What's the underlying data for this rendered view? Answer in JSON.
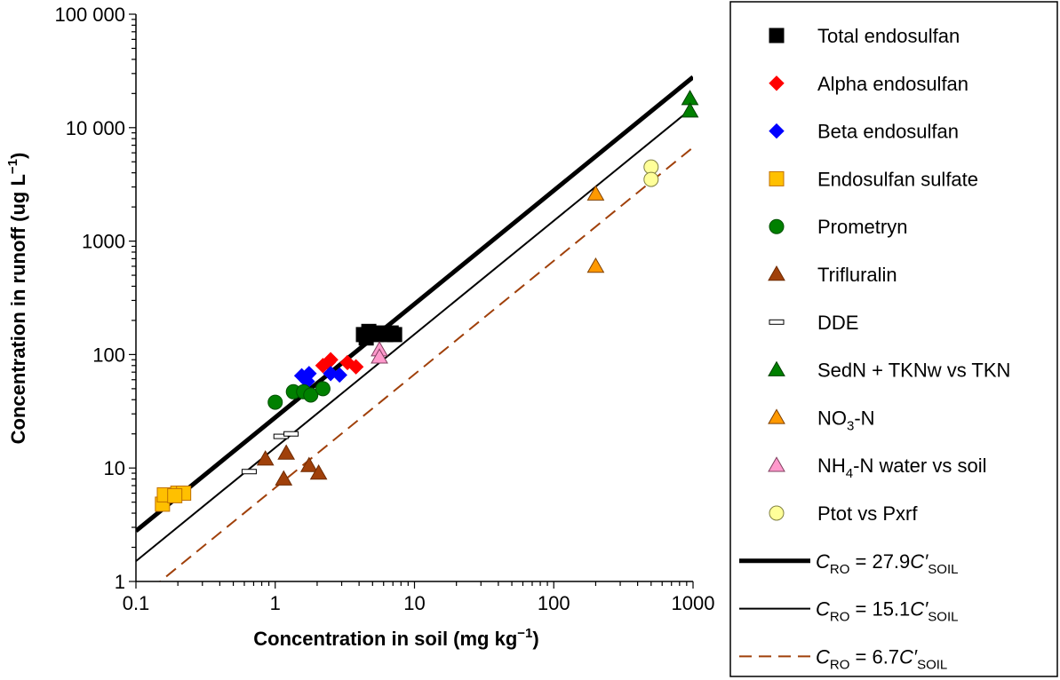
{
  "chart_data": {
    "type": "scatter",
    "xlabel": "Concentration in soil (mg kg",
    "xlabel_sup": "−1",
    "xlabel_end": ")",
    "ylabel": "Concentration in runoff (ug L",
    "ylabel_sup": "−1",
    "ylabel_end": ")",
    "x_scale": "log",
    "y_scale": "log",
    "xlim": [
      0.1,
      1000
    ],
    "ylim": [
      1,
      100000
    ],
    "x_ticks": [
      {
        "value": 0.1,
        "label": "0.1"
      },
      {
        "value": 1,
        "label": "1"
      },
      {
        "value": 10,
        "label": "10"
      },
      {
        "value": 100,
        "label": "100"
      },
      {
        "value": 1000,
        "label": "1000"
      }
    ],
    "y_ticks": [
      {
        "value": 1,
        "label": "1"
      },
      {
        "value": 10,
        "label": "10"
      },
      {
        "value": 100,
        "label": "100"
      },
      {
        "value": 1000,
        "label": "1000"
      },
      {
        "value": 10000,
        "label": "10 000"
      },
      {
        "value": 100000,
        "label": "100 000"
      }
    ],
    "grid": false,
    "legend_position": "right",
    "series": [
      {
        "name": "Total endosulfan",
        "marker": "square",
        "color": "#000000",
        "stroke": "#000000",
        "points": [
          [
            4.3,
            150
          ],
          [
            4.7,
            160
          ],
          [
            5.3,
            150
          ],
          [
            5.8,
            155
          ],
          [
            6.2,
            150
          ],
          [
            6.8,
            155
          ],
          [
            7.2,
            150
          ],
          [
            4.5,
            140
          ]
        ]
      },
      {
        "name": "Alpha endosulfan",
        "marker": "diamond",
        "color": "#ff0000",
        "stroke": "#ff0000",
        "points": [
          [
            2.2,
            80
          ],
          [
            2.5,
            90
          ],
          [
            2.4,
            85
          ],
          [
            3.3,
            85
          ],
          [
            3.8,
            78
          ]
        ]
      },
      {
        "name": "Beta endosulfan",
        "marker": "diamond",
        "color": "#0000ff",
        "stroke": "#0000ff",
        "points": [
          [
            1.55,
            65
          ],
          [
            1.75,
            68
          ],
          [
            1.7,
            58
          ],
          [
            2.5,
            68
          ],
          [
            2.9,
            66
          ]
        ]
      },
      {
        "name": "Endosulfan sulfate",
        "marker": "square",
        "color": "#ffc000",
        "stroke": "#c07000",
        "points": [
          [
            0.155,
            4.8
          ],
          [
            0.16,
            5.8
          ],
          [
            0.2,
            6.0
          ],
          [
            0.22,
            6.0
          ],
          [
            0.19,
            5.7
          ]
        ]
      },
      {
        "name": "Prometryn",
        "marker": "circle",
        "color": "#008000",
        "stroke": "#005000",
        "points": [
          [
            1.0,
            38
          ],
          [
            1.35,
            47
          ],
          [
            1.6,
            47
          ],
          [
            1.8,
            44
          ],
          [
            2.2,
            50
          ]
        ]
      },
      {
        "name": "Trifluralin",
        "marker": "triangle",
        "color": "#a0400a",
        "stroke": "#6e2a00",
        "points": [
          [
            0.85,
            12
          ],
          [
            1.2,
            13.5
          ],
          [
            1.15,
            8
          ],
          [
            1.75,
            10.5
          ],
          [
            2.05,
            9
          ]
        ]
      },
      {
        "name": "DDE",
        "marker": "dash",
        "color": "#ffffff",
        "stroke": "#000000",
        "points": [
          [
            0.65,
            9.3
          ],
          [
            1.1,
            19
          ],
          [
            1.3,
            20
          ]
        ]
      },
      {
        "name": "SedN + TKNw vs TKN",
        "marker": "triangle",
        "color": "#008000",
        "stroke": "#004000",
        "points": [
          [
            950,
            18000
          ],
          [
            950,
            14000
          ]
        ]
      },
      {
        "name": "NO",
        "name_sub": "3",
        "name_end": "-N",
        "marker": "triangle",
        "color": "#ff9900",
        "stroke": "#804000",
        "points": [
          [
            200,
            2600
          ],
          [
            200,
            600
          ]
        ]
      },
      {
        "name": "NH",
        "name_sub": "4",
        "name_end": "-N water vs soil",
        "marker": "triangle",
        "color": "#ff99cc",
        "stroke": "#804060",
        "points": [
          [
            5.6,
            110
          ],
          [
            5.6,
            95
          ]
        ]
      },
      {
        "name": "Ptot vs Pxrf",
        "marker": "circle",
        "color": "#ffff99",
        "stroke": "#808040",
        "points": [
          [
            500,
            4500
          ],
          [
            500,
            3500
          ]
        ]
      }
    ],
    "lines": [
      {
        "slope": 27.9,
        "style": "thick",
        "color": "#000000",
        "label_sub": "RO",
        "label_mid": " = 27.9",
        "label_prime": "C′",
        "label_sub2": "SOIL"
      },
      {
        "slope": 15.1,
        "style": "thin",
        "color": "#000000",
        "label_sub": "RO",
        "label_mid": " = 15.1",
        "label_prime": "C′",
        "label_sub2": "SOIL"
      },
      {
        "slope": 6.7,
        "style": "dashed",
        "color": "#a0400a",
        "label_sub": "RO",
        "label_mid": " = 6.7",
        "label_prime": "C′",
        "label_sub2": "SOIL"
      }
    ],
    "line_label_c": "C"
  }
}
